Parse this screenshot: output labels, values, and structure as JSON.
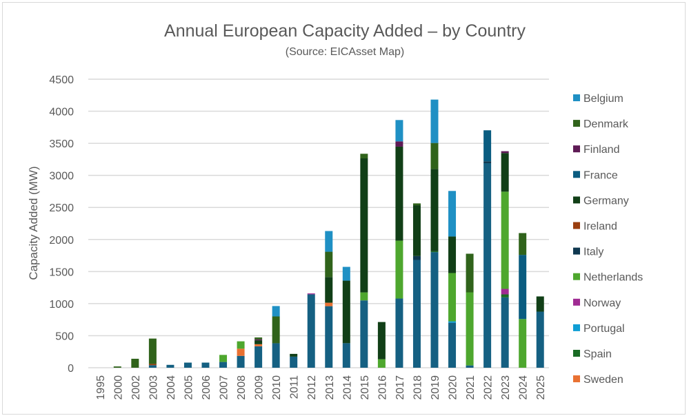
{
  "chart_data": {
    "type": "bar",
    "stacked": true,
    "title": "Annual European Capacity Added – by Country",
    "subtitle": "(Source: EICAsset Map)",
    "xlabel": "",
    "ylabel": "Capacity Added (MW)",
    "ylim": [
      0,
      4500
    ],
    "yticks": [
      0,
      500,
      1000,
      1500,
      2000,
      2500,
      3000,
      3500,
      4000,
      4500
    ],
    "grid": true,
    "legend_position": "right",
    "categories": [
      "1995",
      "2000",
      "2002",
      "2003",
      "2004",
      "2005",
      "2006",
      "2007",
      "2008",
      "2009",
      "2010",
      "2011",
      "2012",
      "2013",
      "2014",
      "2015",
      "2016",
      "2017",
      "2018",
      "2019",
      "2020",
      "2021",
      "2022",
      "2023",
      "2024",
      "2025"
    ],
    "series": [
      {
        "color": "#156082",
        "in_legend": false,
        "values": [
          0,
          0,
          0,
          40,
          45,
          80,
          80,
          90,
          185,
          335,
          382,
          173,
          1145,
          960,
          383,
          1050,
          0,
          1079,
          1681,
          1803,
          702,
          36,
          3190,
          1097,
          0,
          875
        ]
      },
      {
        "name": "Sweden",
        "color": "#e97132",
        "values": [
          0,
          0,
          0,
          0,
          0,
          0,
          0,
          0,
          112,
          32,
          0,
          0,
          0,
          54,
          0,
          0,
          0,
          0,
          0,
          0,
          0,
          0,
          0,
          0,
          0,
          0
        ]
      },
      {
        "name": "Spain",
        "color": "#196b24",
        "values": [
          0,
          0,
          0,
          0,
          0,
          0,
          0,
          0,
          0,
          0,
          0,
          0,
          0,
          0,
          0,
          0,
          0,
          0,
          0,
          14,
          0,
          0,
          0,
          47,
          0,
          0
        ]
      },
      {
        "name": "Portugal",
        "color": "#0f9ed5",
        "values": [
          0,
          0,
          0,
          0,
          0,
          0,
          0,
          0,
          0,
          0,
          0,
          0,
          0,
          0,
          0,
          0,
          0,
          0,
          0,
          0,
          22,
          0,
          0,
          0,
          0,
          0
        ]
      },
      {
        "name": "Norway",
        "color": "#a02b93",
        "values": [
          0,
          0,
          0,
          0,
          0,
          0,
          0,
          0,
          0,
          0,
          0,
          0,
          14,
          0,
          0,
          0,
          0,
          0,
          0,
          0,
          0,
          0,
          0,
          86,
          0,
          0
        ]
      },
      {
        "name": "Netherlands",
        "color": "#4ea72e",
        "values": [
          0,
          0,
          0,
          0,
          0,
          0,
          0,
          110,
          115,
          0,
          0,
          0,
          0,
          0,
          0,
          125,
          133,
          903,
          0,
          0,
          753,
          1140,
          0,
          1516,
          760,
          0
        ]
      },
      {
        "name": "Italy",
        "color": "#0f3850",
        "values": [
          0,
          0,
          0,
          0,
          0,
          0,
          0,
          0,
          0,
          0,
          0,
          0,
          0,
          0,
          0,
          0,
          0,
          0,
          61,
          0,
          0,
          0,
          29,
          0,
          0,
          0
        ]
      },
      {
        "name": "Ireland",
        "color": "#9a3e0f",
        "values": [
          0,
          0,
          0,
          20,
          0,
          0,
          0,
          0,
          0,
          0,
          0,
          0,
          0,
          0,
          0,
          0,
          0,
          0,
          0,
          0,
          0,
          0,
          0,
          0,
          0,
          0
        ]
      },
      {
        "name": "Germany",
        "color": "#113f17",
        "values": [
          0,
          0,
          0,
          0,
          0,
          0,
          0,
          0,
          0,
          61,
          0,
          43,
          0,
          401,
          975,
          2090,
          580,
          1466,
          792,
          1283,
          570,
          0,
          0,
          602,
          0,
          237
        ]
      },
      {
        "name": "France",
        "color": "#0a5c80",
        "values": [
          0,
          0,
          0,
          0,
          0,
          0,
          0,
          0,
          0,
          0,
          0,
          0,
          0,
          0,
          0,
          0,
          0,
          0,
          0,
          0,
          0,
          0,
          484,
          0,
          1000,
          0
        ]
      },
      {
        "name": "Finland",
        "color": "#5e1a55",
        "values": [
          0,
          0,
          0,
          0,
          0,
          0,
          0,
          0,
          0,
          15,
          0,
          0,
          0,
          0,
          0,
          0,
          0,
          82,
          0,
          0,
          0,
          0,
          0,
          29,
          0,
          0
        ]
      },
      {
        "name": "Denmark",
        "color": "#30631b",
        "values": [
          0,
          20,
          140,
          395,
          0,
          0,
          0,
          0,
          0,
          29,
          418,
          0,
          0,
          394,
          0,
          72,
          0,
          0,
          29,
          405,
          0,
          602,
          0,
          0,
          340,
          0
        ]
      },
      {
        "name": "Belgium",
        "color": "#1f90c4",
        "values": [
          0,
          0,
          0,
          0,
          0,
          0,
          0,
          0,
          0,
          0,
          162,
          0,
          0,
          323,
          215,
          0,
          0,
          333,
          0,
          677,
          710,
          0,
          0,
          0,
          0,
          0
        ]
      }
    ],
    "legend": [
      "Belgium",
      "Denmark",
      "Finland",
      "France",
      "Germany",
      "Ireland",
      "Italy",
      "Netherlands",
      "Norway",
      "Portugal",
      "Spain",
      "Sweden"
    ]
  }
}
